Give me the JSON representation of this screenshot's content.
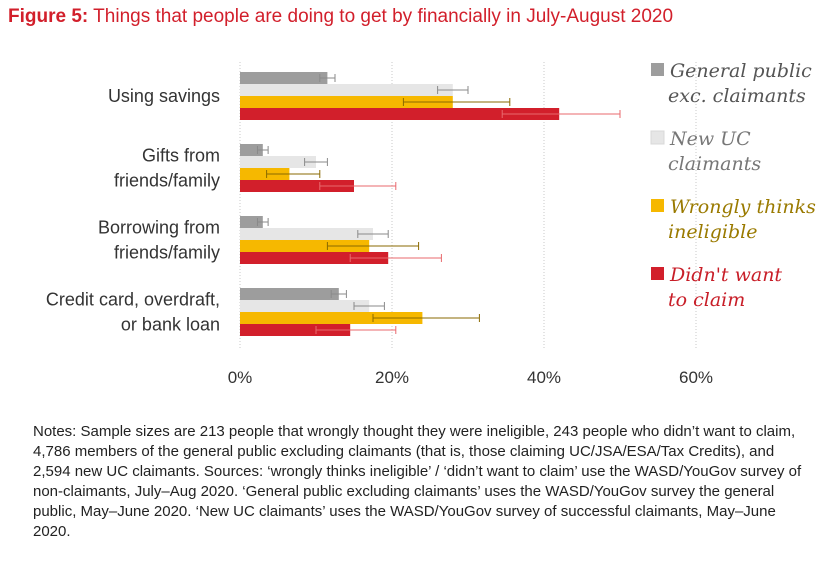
{
  "figure": {
    "label": "Figure 5:",
    "title": "Things that people are doing to get by financially in July-August 2020"
  },
  "chart_data": {
    "type": "bar",
    "orientation": "horizontal",
    "categories": [
      [
        "Using savings"
      ],
      [
        "Gifts from",
        "friends/family"
      ],
      [
        "Borrowing from",
        "friends/family"
      ],
      [
        "Credit card, overdraft,",
        "or bank loan"
      ]
    ],
    "xlim": [
      0,
      60
    ],
    "xticks": [
      0,
      20,
      40,
      60
    ],
    "xtick_labels": [
      "0%",
      "20%",
      "40%",
      "60%"
    ],
    "grid": "vertical-dotted",
    "legend_position": "right",
    "series": [
      {
        "name": "General public exc. claimants",
        "legend_lines": [
          "General public",
          "exc. claimants"
        ],
        "color": "#9d9d9d",
        "text_color": "#555555",
        "values": [
          11.5,
          3,
          3,
          13
        ],
        "error_low": [
          10.5,
          2.3,
          2.3,
          12
        ],
        "error_high": [
          12.5,
          3.7,
          3.7,
          14
        ]
      },
      {
        "name": "New UC claimants",
        "legend_lines": [
          "New UC",
          "claimants"
        ],
        "color": "#e6e6e6",
        "text_color": "#777777",
        "values": [
          28,
          10,
          17.5,
          17
        ],
        "error_low": [
          26,
          8.5,
          15.5,
          15
        ],
        "error_high": [
          30,
          11.5,
          19.5,
          19
        ]
      },
      {
        "name": "Wrongly thinks ineligible",
        "legend_lines": [
          "Wrongly thinks",
          "ineligible"
        ],
        "color": "#f6b800",
        "text_color": "#9a7a00",
        "values": [
          28,
          6.5,
          17,
          24
        ],
        "error_low": [
          21.5,
          3.5,
          11.5,
          17.5
        ],
        "error_high": [
          35.5,
          10.5,
          23.5,
          31.5
        ],
        "error_color": "#8a6a00"
      },
      {
        "name": "Didn't want to claim",
        "legend_lines": [
          "Didn't want",
          "to claim"
        ],
        "color": "#d21f2b",
        "text_color": "#c81e28",
        "values": [
          42,
          15,
          19.5,
          14.5
        ],
        "error_low": [
          34.5,
          10.5,
          14.5,
          10
        ],
        "error_high": [
          50,
          20.5,
          26.5,
          20.5
        ],
        "error_color": "#e86a6e"
      }
    ]
  },
  "notes": "Notes: Sample sizes are 213 people that wrongly thought they were ineligible, 243 people who didn’t want to claim, 4,786 members of the general public excluding claimants (that is, those claiming UC/JSA/ESA/Tax Credits), and 2,594 new UC claimants. Sources: ‘wrongly thinks ineligible’ / ‘didn’t want to claim’ use the WASD/YouGov survey of non-claimants, July–Aug 2020. ‘General public excluding claimants’ uses the WASD/YouGov survey the general public, May–June 2020. ‘New UC claimants’ uses the WASD/YouGov survey of successful claimants, May–June 2020."
}
